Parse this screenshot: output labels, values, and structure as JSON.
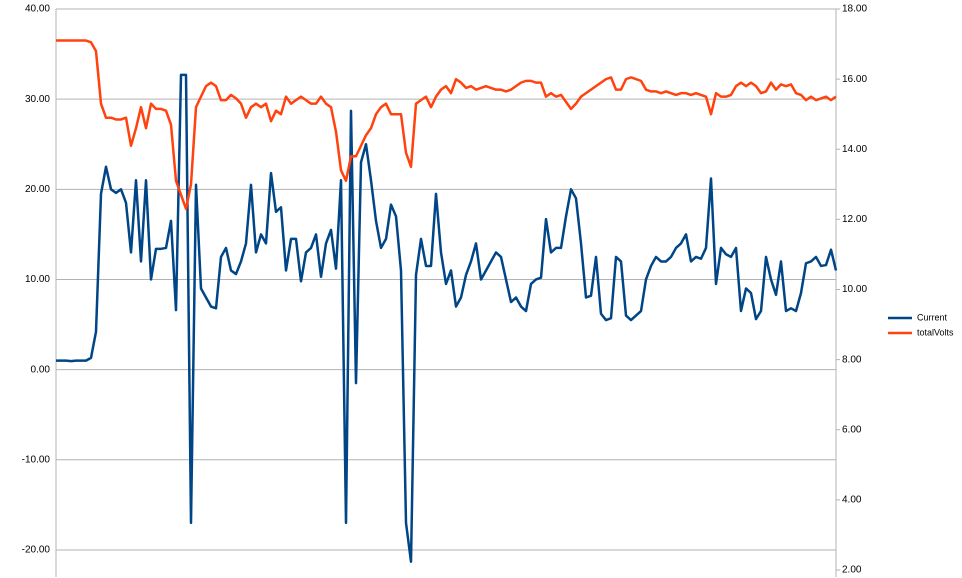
{
  "chart_data": {
    "type": "line",
    "categories": [
      null,
      null,
      null,
      null,
      null,
      null,
      null,
      null,
      null,
      null,
      null,
      null,
      null,
      null,
      null,
      null,
      null,
      null,
      null,
      null,
      null,
      null,
      null,
      null,
      null,
      null,
      null,
      null,
      null,
      null,
      null,
      null,
      null,
      null,
      null,
      null,
      null,
      null,
      null,
      null,
      null,
      null,
      null,
      null,
      null,
      null,
      null,
      null,
      null,
      null,
      null,
      null,
      null,
      null,
      null,
      null,
      null,
      null,
      null,
      null,
      null,
      null,
      null,
      null,
      null,
      null,
      null,
      null,
      null,
      null,
      null,
      null,
      null,
      null,
      null,
      null,
      null,
      null,
      null,
      null,
      null,
      null,
      null,
      null,
      null,
      null,
      null,
      null,
      null,
      null,
      null,
      null,
      null,
      null,
      null,
      null,
      null,
      null,
      null,
      null,
      null,
      null,
      null,
      null,
      null,
      null,
      null,
      null,
      null,
      null,
      null,
      null,
      null,
      null,
      null,
      null,
      null,
      null,
      null,
      null,
      null,
      null,
      null,
      null,
      null,
      null,
      null,
      null,
      null,
      null,
      null,
      null,
      null,
      null,
      null,
      null,
      null,
      null,
      null,
      null,
      null,
      null,
      null,
      null,
      null,
      null,
      null,
      null,
      null,
      null,
      null,
      null,
      null,
      null,
      null,
      null,
      null
    ],
    "series": [
      {
        "name": "Current",
        "color": "#004586",
        "axis": "y",
        "values": [
          1.0,
          1.0,
          1.0,
          0.95,
          1.0,
          1.0,
          1.0,
          1.3,
          4.2,
          19.5,
          22.5,
          20.0,
          19.6,
          20.0,
          18.5,
          13.0,
          21.0,
          12.0,
          21.0,
          10.0,
          13.4,
          13.4,
          13.5,
          16.5,
          6.6,
          32.7,
          32.7,
          -17.0,
          20.5,
          9.0,
          8.0,
          7.0,
          6.8,
          12.5,
          13.5,
          11.0,
          10.6,
          12.0,
          14.0,
          20.5,
          13.0,
          15.0,
          14.0,
          21.8,
          17.5,
          18.0,
          11.0,
          14.5,
          14.5,
          9.8,
          13.0,
          13.5,
          15.0,
          10.3,
          14.0,
          15.5,
          11.2,
          21.0,
          -17.0,
          28.7,
          -1.5,
          23.0,
          25.0,
          21.0,
          16.5,
          13.5,
          14.5,
          18.3,
          17.0,
          11.0,
          -17.0,
          -21.3,
          10.5,
          14.5,
          11.5,
          11.5,
          19.5,
          13.0,
          9.5,
          11,
          7,
          8,
          10.5,
          12,
          14,
          10,
          11,
          12,
          13,
          12.5,
          10,
          7.5,
          8,
          7,
          6.5,
          9.5,
          10,
          10.2,
          16.7,
          13,
          13.5,
          13.5,
          17,
          20,
          19,
          14,
          8,
          8.2,
          12.5,
          6.2,
          5.5,
          5.7,
          12.5,
          12,
          6,
          5.5,
          6,
          6.5,
          10,
          11.5,
          12.5,
          12,
          12,
          12.5,
          13.5,
          14,
          15,
          12,
          12.5,
          12.3,
          13.5,
          21.2,
          9.5,
          13.5,
          12.8,
          12.5,
          13.5,
          6.5,
          9,
          8.5,
          5.6,
          6.5,
          12.5,
          10,
          8.3,
          12,
          6.5,
          6.8,
          6.5,
          8.5,
          11.8,
          12,
          12.5,
          11.5,
          11.6,
          13.3,
          11
        ]
      },
      {
        "name": "totalVolts",
        "color": "#ff420e",
        "axis": "y2",
        "values": [
          17.1,
          17.1,
          17.1,
          17.1,
          17.1,
          17.1,
          17.1,
          17.05,
          16.8,
          15.3,
          14.9,
          14.9,
          14.85,
          14.85,
          14.9,
          14.1,
          14.6,
          15.2,
          14.6,
          15.3,
          15.15,
          15.15,
          15.1,
          14.7,
          13.1,
          12.7,
          12.3,
          13.0,
          15.2,
          15.5,
          15.8,
          15.9,
          15.8,
          15.4,
          15.4,
          15.55,
          15.45,
          15.3,
          14.9,
          15.2,
          15.3,
          15.2,
          15.3,
          14.8,
          15.1,
          15.0,
          15.5,
          15.3,
          15.4,
          15.5,
          15.4,
          15.3,
          15.3,
          15.5,
          15.3,
          15.2,
          14.5,
          13.4,
          13.1,
          13.8,
          13.8,
          14.1,
          14.4,
          14.6,
          15.0,
          15.2,
          15.3,
          15.0,
          15.0,
          15.0,
          13.9,
          13.5,
          15.3,
          15.4,
          15.5,
          15.2,
          15.5,
          15.7,
          15.8,
          15.6,
          16.0,
          15.9,
          15.75,
          15.8,
          15.7,
          15.75,
          15.8,
          15.75,
          15.7,
          15.7,
          15.65,
          15.7,
          15.8,
          15.9,
          15.95,
          15.95,
          15.9,
          15.9,
          15.5,
          15.6,
          15.5,
          15.55,
          15.35,
          15.15,
          15.3,
          15.5,
          15.6,
          15.7,
          15.8,
          15.9,
          16.0,
          16.05,
          15.7,
          15.7,
          16.0,
          16.05,
          16.0,
          15.95,
          15.7,
          15.65,
          15.65,
          15.6,
          15.65,
          15.6,
          15.55,
          15.6,
          15.6,
          15.55,
          15.6,
          15.55,
          15.5,
          15.0,
          15.6,
          15.5,
          15.5,
          15.55,
          15.8,
          15.9,
          15.8,
          15.9,
          15.8,
          15.6,
          15.65,
          15.9,
          15.7,
          15.85,
          15.8,
          15.85,
          15.6,
          15.55,
          15.4,
          15.5,
          15.4,
          15.45,
          15.5,
          15.4,
          15.5
        ]
      }
    ],
    "ylim": [
      -23,
      40
    ],
    "yticks": [
      {
        "value": 40,
        "label": "40.00"
      },
      {
        "value": 30,
        "label": "30.00"
      },
      {
        "value": 20,
        "label": "20.00"
      },
      {
        "value": 10,
        "label": "10.00"
      },
      {
        "value": 0,
        "label": "0.00"
      },
      {
        "value": -10,
        "label": "-10.00"
      },
      {
        "value": -20,
        "label": "-20.00"
      }
    ],
    "y2lim": [
      1.8,
      18
    ],
    "y2ticks": [
      {
        "value": 18,
        "label": "18.00"
      },
      {
        "value": 16,
        "label": "16.00"
      },
      {
        "value": 14,
        "label": "14.00"
      },
      {
        "value": 12,
        "label": "12.00"
      },
      {
        "value": 10,
        "label": "10.00"
      },
      {
        "value": 8,
        "label": "8.00"
      },
      {
        "value": 6,
        "label": "6.00"
      },
      {
        "value": 4,
        "label": "4.00"
      },
      {
        "value": 2,
        "label": "2.00"
      }
    ],
    "grid": true,
    "legend": "right"
  }
}
